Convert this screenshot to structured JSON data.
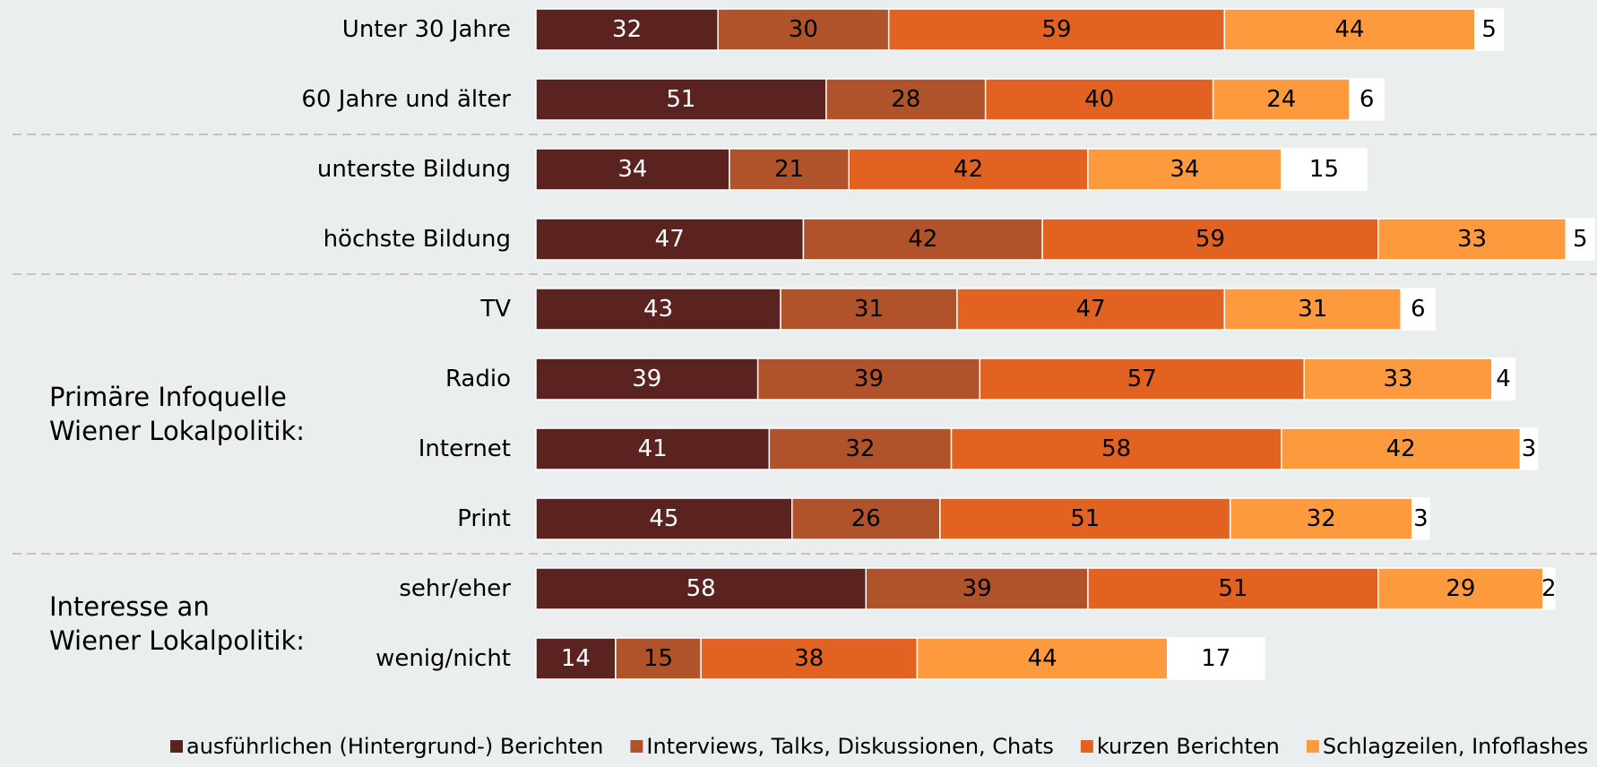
{
  "chart_data": {
    "type": "bar",
    "orientation": "horizontal",
    "stacked": true,
    "colors": [
      "#5a2320",
      "#b0522a",
      "#e26222",
      "#fd9a3e",
      "#ffffff"
    ],
    "label_colors": [
      "#ffffff",
      "#000000",
      "#000000",
      "#000000",
      "#000000"
    ],
    "categories": [
      "Unter 30 Jahre",
      "60 Jahre und älter",
      "unterste Bildung",
      "höchste Bildung",
      "TV",
      "Radio",
      "Internet",
      "Print",
      "sehr/eher",
      "wenig/nicht"
    ],
    "group_labels": [
      {
        "lines": [
          "Primäre Infoquelle",
          "Wiener Lokalpolitik:"
        ],
        "rows": [
          4,
          7
        ]
      },
      {
        "lines": [
          "Interesse an",
          "Wiener Lokalpolitik:"
        ],
        "rows": [
          8,
          9
        ]
      }
    ],
    "separators_after_rows": [
      1,
      3,
      7
    ],
    "series": [
      {
        "name": "ausführlichen (Hintergrund-) Berichten",
        "values": [
          32,
          51,
          34,
          47,
          43,
          39,
          41,
          45,
          58,
          14
        ]
      },
      {
        "name": "Interviews, Talks, Diskussionen, Chats",
        "values": [
          30,
          28,
          21,
          42,
          31,
          39,
          32,
          26,
          39,
          15
        ]
      },
      {
        "name": "kurzen Berichten",
        "values": [
          59,
          40,
          42,
          59,
          47,
          57,
          58,
          51,
          51,
          38
        ]
      },
      {
        "name": "Schlagzeilen, Infoflashes",
        "values": [
          44,
          24,
          34,
          33,
          31,
          33,
          42,
          32,
          29,
          44
        ]
      },
      {
        "name": "",
        "values": [
          5,
          6,
          15,
          5,
          6,
          4,
          3,
          3,
          2,
          17
        ]
      }
    ]
  }
}
